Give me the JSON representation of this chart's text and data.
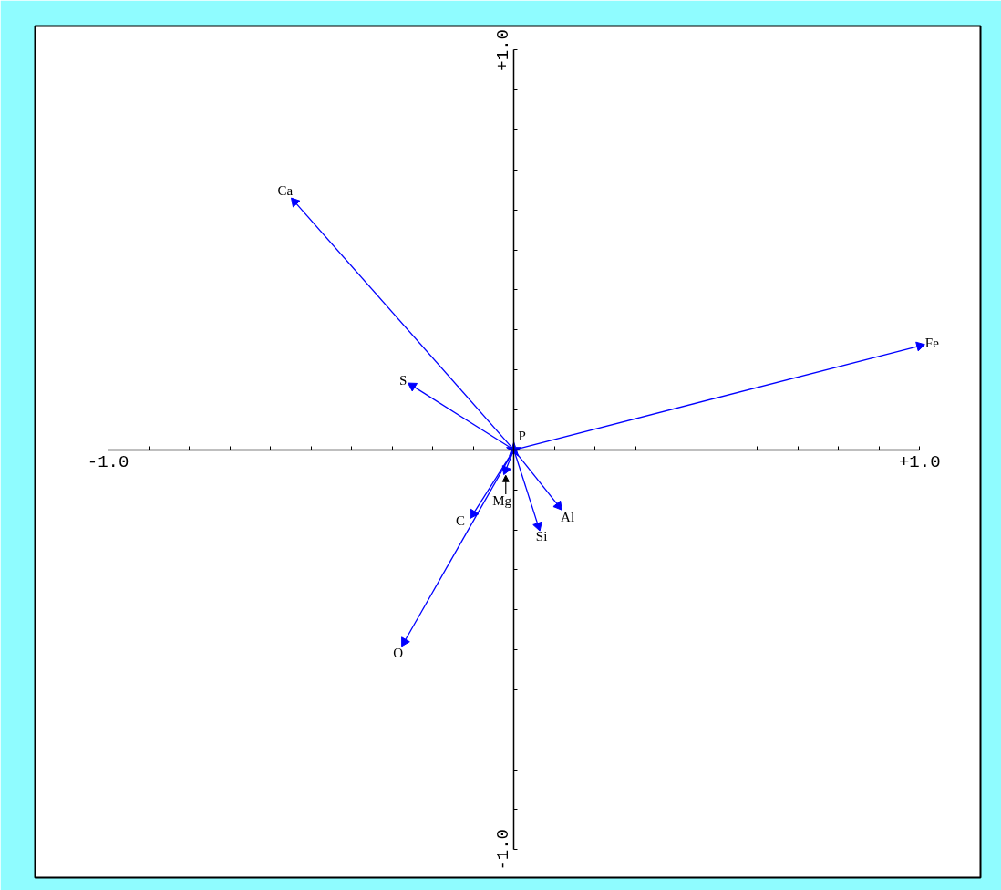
{
  "chart_data": {
    "type": "line",
    "marker": "triangle",
    "xlim": [
      -1.18,
      1.15
    ],
    "ylim": [
      -1.07,
      1.06
    ],
    "xticks": [
      {
        "value": -1.0,
        "label": "-1.0"
      },
      {
        "value": -0.9,
        "label": null
      },
      {
        "value": -0.8,
        "label": null
      },
      {
        "value": -0.7,
        "label": null
      },
      {
        "value": -0.6,
        "label": null
      },
      {
        "value": -0.5,
        "label": null
      },
      {
        "value": -0.4,
        "label": null
      },
      {
        "value": -0.3,
        "label": null
      },
      {
        "value": -0.2,
        "label": null
      },
      {
        "value": -0.1,
        "label": null
      },
      {
        "value": 0.1,
        "label": null
      },
      {
        "value": 0.2,
        "label": null
      },
      {
        "value": 0.3,
        "label": null
      },
      {
        "value": 0.4,
        "label": null
      },
      {
        "value": 0.5,
        "label": null
      },
      {
        "value": 0.6,
        "label": null
      },
      {
        "value": 0.7,
        "label": null
      },
      {
        "value": 0.8,
        "label": null
      },
      {
        "value": 0.9,
        "label": null
      },
      {
        "value": 1.0,
        "label": "+1.0"
      }
    ],
    "yticks": [
      {
        "value": -1.0,
        "label": "-1.0"
      },
      {
        "value": -0.9,
        "label": null
      },
      {
        "value": -0.8,
        "label": null
      },
      {
        "value": -0.7,
        "label": null
      },
      {
        "value": -0.6,
        "label": null
      },
      {
        "value": -0.5,
        "label": null
      },
      {
        "value": -0.4,
        "label": null
      },
      {
        "value": -0.3,
        "label": null
      },
      {
        "value": -0.2,
        "label": null
      },
      {
        "value": -0.1,
        "label": null
      },
      {
        "value": 0.1,
        "label": null
      },
      {
        "value": 0.2,
        "label": null
      },
      {
        "value": 0.3,
        "label": null
      },
      {
        "value": 0.4,
        "label": null
      },
      {
        "value": 0.5,
        "label": null
      },
      {
        "value": 0.6,
        "label": null
      },
      {
        "value": 0.7,
        "label": null
      },
      {
        "value": 0.8,
        "label": null
      },
      {
        "value": 0.9,
        "label": null
      },
      {
        "value": 1.0,
        "label": "+1.0"
      }
    ],
    "series": [
      {
        "name": "Ca",
        "color": "#0000ff",
        "x": [
          0,
          -0.54
        ],
        "values": [
          0,
          0.62
        ]
      },
      {
        "name": "Fe",
        "color": "#0000ff",
        "x": [
          0,
          1.0
        ],
        "values": [
          0,
          0.26
        ]
      },
      {
        "name": "S",
        "color": "#0000ff",
        "x": [
          0,
          -0.25
        ],
        "values": [
          0,
          0.16
        ]
      },
      {
        "name": "O",
        "color": "#0000ff",
        "x": [
          0,
          -0.27
        ],
        "values": [
          0,
          -0.48
        ]
      },
      {
        "name": "C",
        "color": "#0000ff",
        "x": [
          0,
          -0.1
        ],
        "values": [
          0,
          -0.16
        ]
      },
      {
        "name": "Mg",
        "color": "#0000ff",
        "x": [
          0,
          -0.02
        ],
        "values": [
          0,
          -0.05
        ]
      },
      {
        "name": "Al",
        "color": "#0000ff",
        "x": [
          0,
          0.11
        ],
        "values": [
          0,
          -0.14
        ]
      },
      {
        "name": "Si",
        "color": "#0000ff",
        "x": [
          0,
          0.06
        ],
        "values": [
          0,
          -0.19
        ]
      },
      {
        "name": "P",
        "type": "scatter",
        "marker": "star",
        "color": "#0000ff",
        "x": [
          0
        ],
        "values": [
          0
        ]
      }
    ]
  }
}
